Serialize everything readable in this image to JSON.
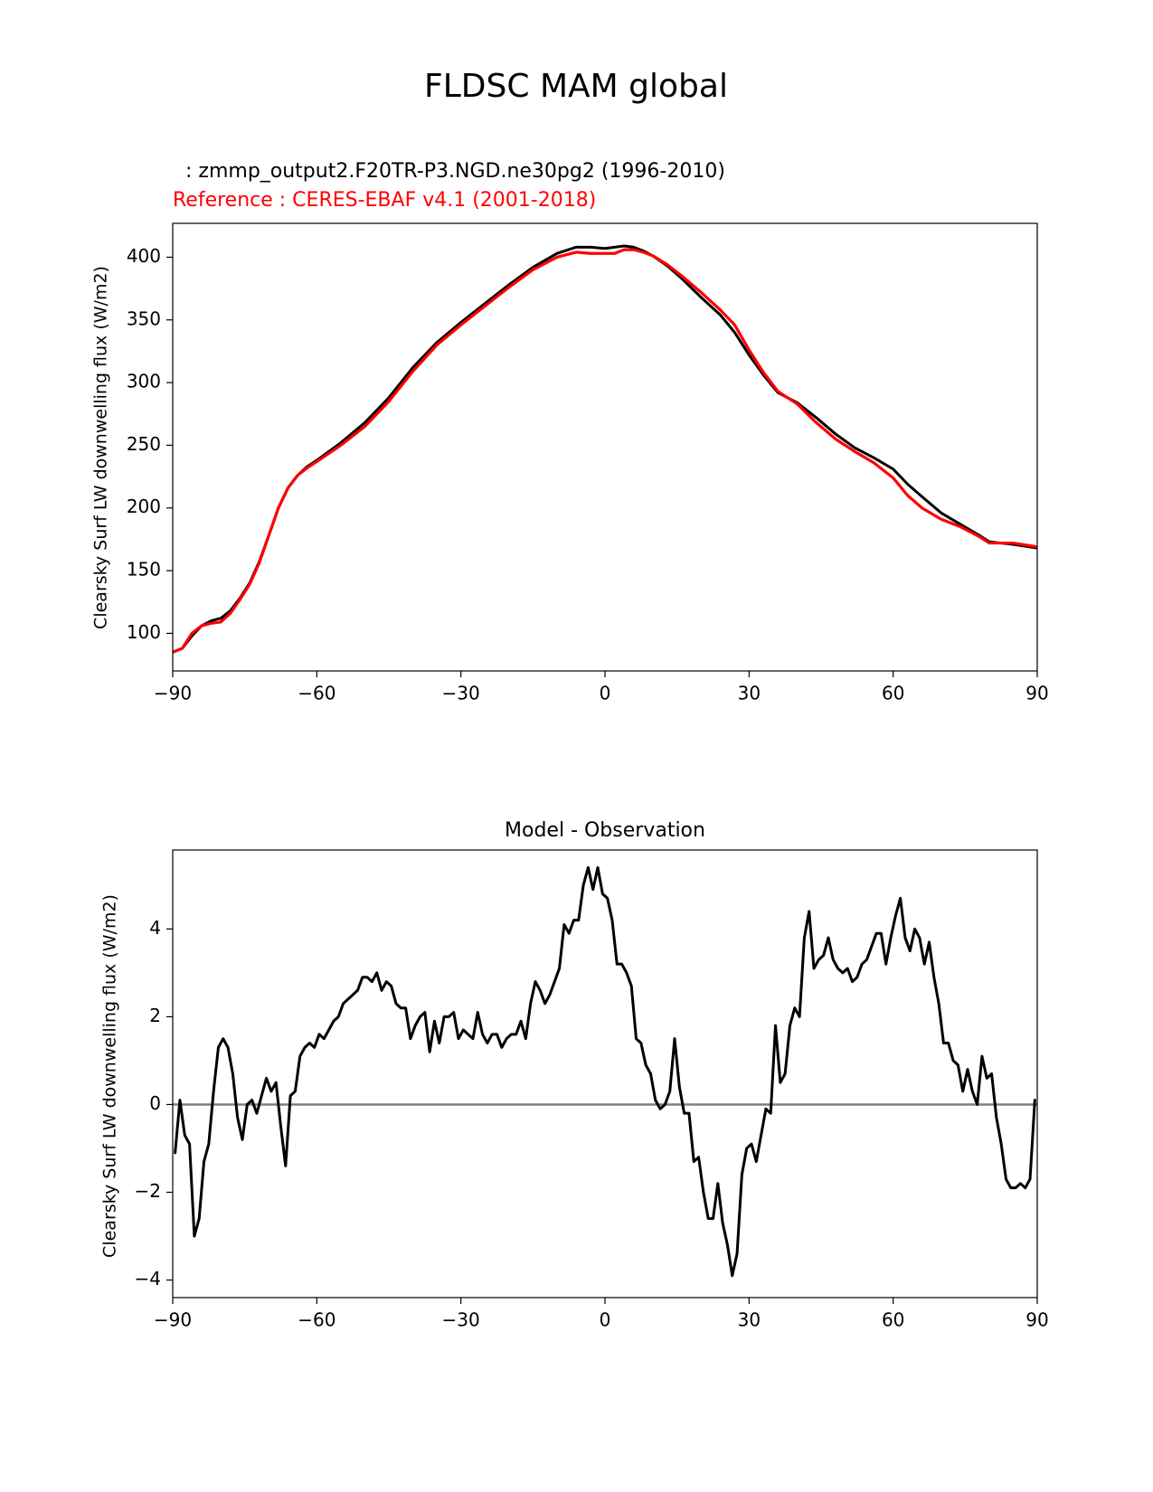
{
  "page": {
    "title": "FLDSC MAM global"
  },
  "chart_data": [
    {
      "type": "line",
      "title": "",
      "subtitle_lines": [
        {
          "text": ": zmmp_output2.F20TR-P3.NGD.ne30pg2 (1996-2010)",
          "color": "#000000"
        },
        {
          "text": "Reference : CERES-EBAF v4.1 (2001-2018)",
          "color": "#ff0000"
        }
      ],
      "xlabel": "",
      "ylabel": "Clearsky Surf LW downwelling flux (W/m2)",
      "xlim": [
        -90,
        90
      ],
      "ylim": [
        70,
        427
      ],
      "xticks": [
        -90,
        -60,
        -30,
        0,
        30,
        60,
        90
      ],
      "xtick_labels": [
        "−90",
        "−60",
        "−30",
        "0",
        "30",
        "60",
        "90"
      ],
      "yticks": [
        100,
        150,
        200,
        250,
        300,
        350,
        400
      ],
      "ytick_labels": [
        "100",
        "150",
        "200",
        "250",
        "300",
        "350",
        "400"
      ],
      "grid": false,
      "series": [
        {
          "color": "#000000",
          "x": [
            -90,
            -88,
            -86,
            -84,
            -82,
            -80,
            -78,
            -76,
            -74,
            -72,
            -70,
            -68,
            -66,
            -64,
            -62,
            -60,
            -55,
            -50,
            -45,
            -40,
            -35,
            -30,
            -25,
            -20,
            -15,
            -10,
            -6,
            -3,
            0,
            2,
            4,
            6,
            8,
            10,
            13,
            16,
            20,
            24,
            27,
            30,
            33,
            36,
            40,
            44,
            48,
            52,
            56,
            60,
            63,
            66,
            70,
            74,
            78,
            80,
            85,
            90
          ],
          "y": [
            85,
            88,
            98,
            106,
            110,
            112,
            118,
            128,
            140,
            157,
            178,
            200,
            216,
            226,
            233,
            238,
            252,
            268,
            288,
            312,
            332,
            348,
            363,
            378,
            392,
            403,
            408,
            408,
            407,
            408,
            409,
            408,
            405,
            401,
            393,
            383,
            368,
            354,
            340,
            322,
            306,
            292,
            284,
            272,
            259,
            248,
            240,
            231,
            219,
            209,
            196,
            187,
            178,
            173,
            171,
            168
          ]
        },
        {
          "color": "#ff0000",
          "x": [
            -90,
            -88,
            -86,
            -84,
            -82,
            -80,
            -78,
            -76,
            -74,
            -72,
            -70,
            -68,
            -66,
            -64,
            -62,
            -60,
            -55,
            -50,
            -45,
            -40,
            -35,
            -30,
            -25,
            -20,
            -15,
            -10,
            -6,
            -3,
            0,
            2,
            4,
            6,
            8,
            10,
            13,
            16,
            20,
            24,
            27,
            30,
            33,
            36,
            40,
            44,
            48,
            52,
            56,
            60,
            63,
            66,
            70,
            74,
            78,
            80,
            85,
            90
          ],
          "y": [
            85,
            88,
            100,
            106,
            108,
            109,
            116,
            127,
            139,
            156,
            178,
            200,
            216,
            226,
            232,
            237,
            250,
            265,
            285,
            309,
            330,
            346,
            361,
            376,
            390,
            400,
            404,
            403,
            403,
            403,
            406,
            406,
            404,
            401,
            394,
            385,
            372,
            358,
            346,
            326,
            308,
            293,
            283,
            268,
            255,
            245,
            236,
            224,
            210,
            200,
            191,
            185,
            177,
            172,
            172,
            169
          ]
        }
      ]
    },
    {
      "type": "line",
      "title": "Model - Observation",
      "xlabel": "",
      "ylabel": "Clearsky Surf LW downwelling flux (W/m2)",
      "xlim": [
        -90,
        90
      ],
      "ylim": [
        -4.4,
        5.8
      ],
      "xticks": [
        -90,
        -60,
        -30,
        0,
        30,
        60,
        90
      ],
      "xtick_labels": [
        "−90",
        "−60",
        "−30",
        "0",
        "30",
        "60",
        "90"
      ],
      "yticks": [
        -4,
        -2,
        0,
        2,
        4
      ],
      "ytick_labels": [
        "−4",
        "−2",
        "0",
        "2",
        "4"
      ],
      "grid": false,
      "reference_line": {
        "y": 0,
        "color": "#808080"
      },
      "series": [
        {
          "color": "#000000",
          "x": [
            -89.5,
            -88.5,
            -87.5,
            -86.5,
            -85.5,
            -84.5,
            -83.5,
            -82.5,
            -81.5,
            -80.5,
            -79.5,
            -78.5,
            -77.5,
            -76.5,
            -75.5,
            -74.5,
            -73.5,
            -72.5,
            -71.5,
            -70.5,
            -69.5,
            -68.5,
            -67.5,
            -66.5,
            -65.5,
            -64.5,
            -63.5,
            -62.5,
            -61.5,
            -60.5,
            -59.5,
            -58.5,
            -57.5,
            -56.5,
            -55.5,
            -54.5,
            -53.5,
            -52.5,
            -51.5,
            -50.5,
            -49.5,
            -48.5,
            -47.5,
            -46.5,
            -45.5,
            -44.5,
            -43.5,
            -42.5,
            -41.5,
            -40.5,
            -39.5,
            -38.5,
            -37.5,
            -36.5,
            -35.5,
            -34.5,
            -33.5,
            -32.5,
            -31.5,
            -30.5,
            -29.5,
            -28.5,
            -27.5,
            -26.5,
            -25.5,
            -24.5,
            -23.5,
            -22.5,
            -21.5,
            -20.5,
            -19.5,
            -18.5,
            -17.5,
            -16.5,
            -15.5,
            -14.5,
            -13.5,
            -12.5,
            -11.5,
            -10.5,
            -9.5,
            -8.5,
            -7.5,
            -6.5,
            -5.5,
            -4.5,
            -3.5,
            -2.5,
            -1.5,
            -0.5,
            0.5,
            1.5,
            2.5,
            3.5,
            4.5,
            5.5,
            6.5,
            7.5,
            8.5,
            9.5,
            10.5,
            11.5,
            12.5,
            13.5,
            14.5,
            15.5,
            16.5,
            17.5,
            18.5,
            19.5,
            20.5,
            21.5,
            22.5,
            23.5,
            24.5,
            25.5,
            26.5,
            27.5,
            28.5,
            29.5,
            30.5,
            31.5,
            32.5,
            33.5,
            34.5,
            35.5,
            36.5,
            37.5,
            38.5,
            39.5,
            40.5,
            41.5,
            42.5,
            43.5,
            44.5,
            45.5,
            46.5,
            47.5,
            48.5,
            49.5,
            50.5,
            51.5,
            52.5,
            53.5,
            54.5,
            55.5,
            56.5,
            57.5,
            58.5,
            59.5,
            60.5,
            61.5,
            62.5,
            63.5,
            64.5,
            65.5,
            66.5,
            67.5,
            68.5,
            69.5,
            70.5,
            71.5,
            72.5,
            73.5,
            74.5,
            75.5,
            76.5,
            77.5,
            78.5,
            79.5,
            80.5,
            81.5,
            82.5,
            83.5,
            84.5,
            85.5,
            86.5,
            87.5,
            88.5,
            89.5
          ],
          "y": [
            -1.1,
            0.1,
            -0.7,
            -0.9,
            -3.0,
            -2.6,
            -1.3,
            -0.9,
            0.3,
            1.3,
            1.5,
            1.3,
            0.7,
            -0.3,
            -0.8,
            0.0,
            0.1,
            -0.2,
            0.2,
            0.6,
            0.3,
            0.5,
            -0.5,
            -1.4,
            0.2,
            0.3,
            1.1,
            1.3,
            1.4,
            1.3,
            1.6,
            1.5,
            1.7,
            1.9,
            2.0,
            2.3,
            2.4,
            2.5,
            2.6,
            2.9,
            2.9,
            2.8,
            3.0,
            2.6,
            2.8,
            2.7,
            2.3,
            2.2,
            2.2,
            1.5,
            1.8,
            2.0,
            2.1,
            1.2,
            1.9,
            1.4,
            2.0,
            2.0,
            2.1,
            1.5,
            1.7,
            1.6,
            1.5,
            2.1,
            1.6,
            1.4,
            1.6,
            1.6,
            1.3,
            1.5,
            1.6,
            1.6,
            1.9,
            1.5,
            2.3,
            2.8,
            2.6,
            2.3,
            2.5,
            2.8,
            3.1,
            4.1,
            3.9,
            4.2,
            4.2,
            5.0,
            5.4,
            4.9,
            5.4,
            4.8,
            4.7,
            4.2,
            3.2,
            3.2,
            3.0,
            2.7,
            1.5,
            1.4,
            0.9,
            0.7,
            0.1,
            -0.1,
            0.0,
            0.3,
            1.5,
            0.4,
            -0.2,
            -0.2,
            -1.3,
            -1.2,
            -2.0,
            -2.6,
            -2.6,
            -1.8,
            -2.7,
            -3.2,
            -3.9,
            -3.4,
            -1.6,
            -1.0,
            -0.9,
            -1.3,
            -0.7,
            -0.1,
            -0.2,
            1.8,
            0.5,
            0.7,
            1.8,
            2.2,
            2.0,
            3.8,
            4.4,
            3.1,
            3.3,
            3.4,
            3.8,
            3.3,
            3.1,
            3.0,
            3.1,
            2.8,
            2.9,
            3.2,
            3.3,
            3.6,
            3.9,
            3.9,
            3.2,
            3.8,
            4.3,
            4.7,
            3.8,
            3.5,
            4.0,
            3.8,
            3.2,
            3.7,
            2.9,
            2.3,
            1.4,
            1.4,
            1.0,
            0.9,
            0.3,
            0.8,
            0.3,
            0.0,
            1.1,
            0.6,
            0.7,
            -0.3,
            -0.9,
            -1.7,
            -1.9,
            -1.9,
            -1.8,
            -1.9,
            -1.7,
            0.1
          ]
        }
      ]
    }
  ]
}
